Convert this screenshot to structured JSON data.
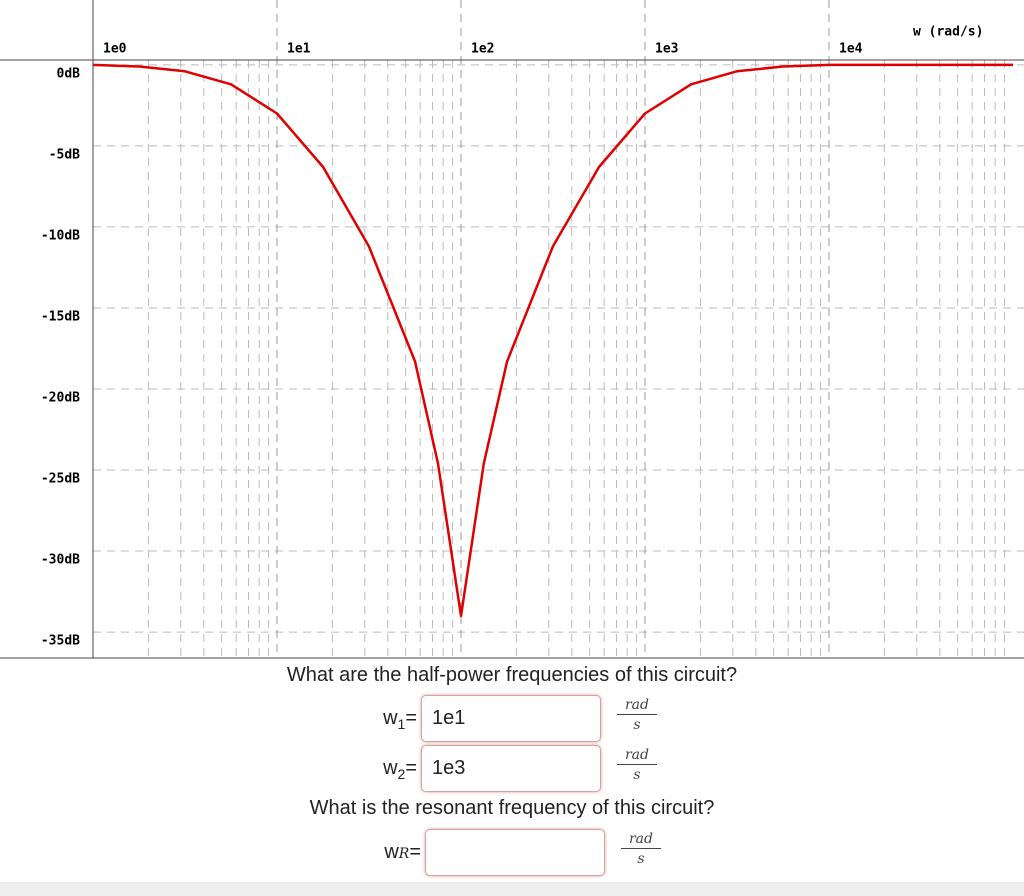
{
  "chart_data": {
    "type": "line",
    "x_label": "w (rad/s)",
    "x": [
      1,
      1.78,
      3.16,
      5.62,
      10,
      17.8,
      31.6,
      56.2,
      75,
      100,
      133,
      178,
      316,
      562,
      1000,
      1780,
      3160,
      5620,
      10000,
      100000
    ],
    "series": [
      {
        "color": "#e00000",
        "values": [
          0,
          -0.1,
          -0.4,
          -1.2,
          -3,
          -6.3,
          -11.2,
          -18.3,
          -24.6,
          -34,
          -24.6,
          -18.3,
          -11.2,
          -6.3,
          -3,
          -1.2,
          -0.4,
          -0.1,
          0,
          0
        ]
      }
    ],
    "xlog": true,
    "xlim": [
      1,
      100000
    ],
    "xticks": [
      {
        "value": 1,
        "label": "1e0"
      },
      {
        "value": 10,
        "label": "1e1"
      },
      {
        "value": 100,
        "label": "1e2"
      },
      {
        "value": 1000,
        "label": "1e3"
      },
      {
        "value": 10000,
        "label": "1e4"
      }
    ],
    "ylim": [
      -36.6,
      0.3
    ],
    "yticks": [
      {
        "value": 0,
        "label": "0dB"
      },
      {
        "value": -5,
        "label": "-5dB"
      },
      {
        "value": -10,
        "label": "-10dB"
      },
      {
        "value": -15,
        "label": "-15dB"
      },
      {
        "value": -20,
        "label": "-20dB"
      },
      {
        "value": -25,
        "label": "-25dB"
      },
      {
        "value": -30,
        "label": "-30dB"
      },
      {
        "value": -35,
        "label": "-35dB"
      }
    ],
    "grid": true
  },
  "form": {
    "questions": [
      {
        "text": "What are the half-power frequencies of this circuit?",
        "fields": [
          {
            "symbol": "w",
            "subscript": "1",
            "sign": "=",
            "value": "1e1",
            "unit": {
              "num": "rad",
              "den": "s"
            }
          },
          {
            "symbol": "w",
            "subscript": "2",
            "sign": "=",
            "value": "1e3",
            "unit": {
              "num": "rad",
              "den": "s"
            }
          }
        ]
      },
      {
        "text": "What is the resonant frequency of this circuit?",
        "fields": [
          {
            "symbol": "w",
            "subscript": "R",
            "sign": "=",
            "unit": {
              "num": "rad",
              "den": "s"
            }
          }
        ]
      }
    ]
  }
}
